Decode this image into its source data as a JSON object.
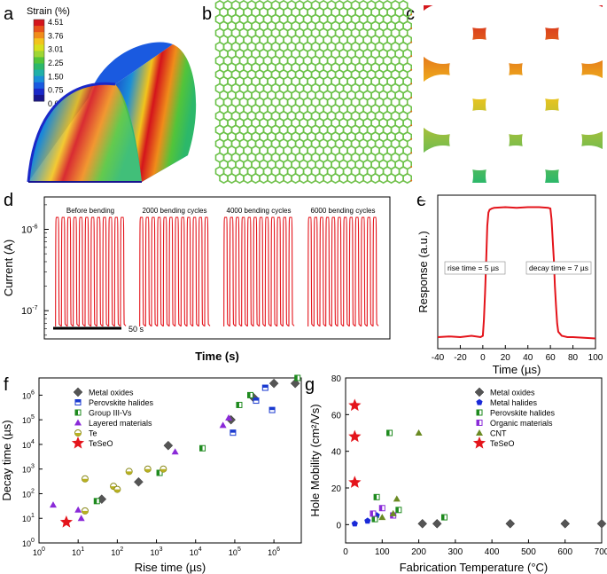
{
  "panels": {
    "a": "a",
    "b": "b",
    "c": "c",
    "d": "d",
    "e": "e",
    "f": "f",
    "g": "g"
  },
  "colors": {
    "red": "#e4141b",
    "axis": "#000000"
  },
  "colorbar": {
    "title": "Strain (%)",
    "ticks": [
      "4.51",
      "3.76",
      "3.01",
      "2.25",
      "1.50",
      "0.75",
      "0.00"
    ],
    "colors": [
      "#d4141c",
      "#e8521a",
      "#f08c1a",
      "#f2c41c",
      "#d8e01c",
      "#9ed634",
      "#52c43a",
      "#2cb86a",
      "#20b0a8",
      "#1a8ed8",
      "#1a5ae0",
      "#1a28c8",
      "#18148e"
    ]
  },
  "chart_data": [
    {
      "id": "d",
      "type": "line",
      "title": "",
      "xlabel": "Time (s)",
      "ylabel": "Current (A)",
      "yscale": "log",
      "ylim": [
        4.5e-08,
        2.5e-06
      ],
      "ytick_labels": [
        "10-7",
        "10-6"
      ],
      "yticks": [
        1e-07,
        1e-06
      ],
      "high": 1.4e-06,
      "low": 6.5e-08,
      "pulses_per_group": 12,
      "group_labels": [
        "Before bending",
        "2000 bending cycles",
        "4000 bending cycles",
        "6000 bending cycles"
      ],
      "scale_bar": "50 s"
    },
    {
      "id": "e",
      "type": "line",
      "xlabel": "Time (µs)",
      "ylabel": "Response (a.u.)",
      "xlim": [
        -40,
        100
      ],
      "xticks": [
        -40,
        -20,
        0,
        20,
        40,
        60,
        80,
        100
      ],
      "x": [
        -40,
        -30,
        -20,
        -10,
        -2,
        0,
        1,
        2,
        3,
        4,
        5,
        6,
        8,
        10,
        20,
        30,
        40,
        50,
        58,
        60,
        61,
        62,
        63,
        64,
        65,
        66,
        67,
        70,
        75,
        80,
        90,
        100
      ],
      "y": [
        0.02,
        0.025,
        0.02,
        0.03,
        0.02,
        0.03,
        0.15,
        0.35,
        0.6,
        0.85,
        0.95,
        0.97,
        0.98,
        0.985,
        0.99,
        0.985,
        0.99,
        0.99,
        0.985,
        0.98,
        0.9,
        0.75,
        0.6,
        0.4,
        0.25,
        0.12,
        0.06,
        0.03,
        0.02,
        0.02,
        0.015,
        0.01
      ],
      "annotations": [
        "rise time = 5 µs",
        "decay time = 7 µs"
      ]
    },
    {
      "id": "f",
      "type": "scatter",
      "xlabel": "Rise time (µs)",
      "ylabel": "Decay time (µs)",
      "xscale": "log",
      "yscale": "log",
      "xlim": [
        1,
        5000000.0
      ],
      "ylim": [
        1,
        5000000.0
      ],
      "xtick_labels": [
        "10^0",
        "10^1",
        "10^2",
        "10^3",
        "10^4",
        "10^5",
        "10^6"
      ],
      "ytick_labels": [
        "10^0",
        "10^1",
        "10^2",
        "10^3",
        "10^4",
        "10^5",
        "10^6"
      ],
      "series": [
        {
          "name": "Metal oxides",
          "marker": "diamond",
          "points": [
            [
              40,
              60
            ],
            [
              350,
              300
            ],
            [
              2000,
              9000
            ],
            [
              80000,
              100000.0
            ],
            [
              300000,
              800000
            ],
            [
              1000000.0,
              3000000.0
            ],
            [
              3500000.0,
              3000000.0
            ]
          ]
        },
        {
          "name": "Perovskite halides",
          "marker": "square-half",
          "points": [
            [
              90000,
              30000
            ],
            [
              350000,
              600000
            ],
            [
              600000,
              2000000
            ],
            [
              900000,
              250000
            ]
          ]
        },
        {
          "name": "Group III-Vs",
          "marker": "square-green",
          "points": [
            [
              30,
              50
            ],
            [
              1200,
              700
            ],
            [
              15000,
              7000
            ],
            [
              130000,
              400000
            ],
            [
              250000,
              1000000
            ],
            [
              4000000.0,
              5000000.0
            ]
          ]
        },
        {
          "name": "Layered materials",
          "marker": "triangle",
          "points": [
            [
              2.3,
              35
            ],
            [
              10,
              22
            ],
            [
              12,
              10
            ],
            [
              3000,
              5000
            ],
            [
              50000,
              60000
            ],
            [
              70000,
              120000.0
            ]
          ]
        },
        {
          "name": "Te",
          "marker": "circle-half",
          "points": [
            [
              15,
              20
            ],
            [
              15,
              400
            ],
            [
              80,
              200
            ],
            [
              100,
              150
            ],
            [
              200,
              800
            ],
            [
              600,
              1000
            ],
            [
              1500,
              1000
            ]
          ]
        },
        {
          "name": "TeSeO",
          "marker": "star",
          "points": [
            [
              5,
              7
            ]
          ]
        }
      ]
    },
    {
      "id": "g",
      "type": "scatter",
      "xlabel": "Fabrication Temperature (°C)",
      "ylabel": "Hole Mobility (cm²/Vs)",
      "xlim": [
        0,
        700
      ],
      "ylim": [
        -10,
        80
      ],
      "xticks": [
        0,
        100,
        200,
        300,
        400,
        500,
        600,
        700
      ],
      "yticks": [
        0,
        20,
        40,
        60,
        80
      ],
      "series": [
        {
          "name": "Metal oxides",
          "marker": "diamond",
          "points": [
            [
              210,
              0.5
            ],
            [
              250,
              0.5
            ],
            [
              450,
              0.5
            ],
            [
              600,
              0.5
            ],
            [
              700,
              0.5
            ]
          ]
        },
        {
          "name": "Metal halides",
          "marker": "pentagon",
          "points": [
            [
              25,
              0.5
            ],
            [
              60,
              2
            ],
            [
              85,
              5
            ]
          ]
        },
        {
          "name": "Perovskite halides",
          "marker": "square-green",
          "points": [
            [
              80,
              3
            ],
            [
              85,
              15
            ],
            [
              120,
              50
            ],
            [
              145,
              8
            ],
            [
              270,
              4
            ]
          ]
        },
        {
          "name": "Organic materials",
          "marker": "square-purple",
          "points": [
            [
              75,
              6
            ],
            [
              100,
              9
            ],
            [
              130,
              5
            ]
          ]
        },
        {
          "name": "CNT",
          "marker": "triangle-olive",
          "points": [
            [
              100,
              4
            ],
            [
              130,
              6
            ],
            [
              140,
              14
            ],
            [
              200,
              50
            ]
          ]
        },
        {
          "name": "TeSeO",
          "marker": "star",
          "points": [
            [
              25,
              65
            ],
            [
              25,
              48
            ],
            [
              25,
              23
            ]
          ]
        }
      ]
    }
  ]
}
